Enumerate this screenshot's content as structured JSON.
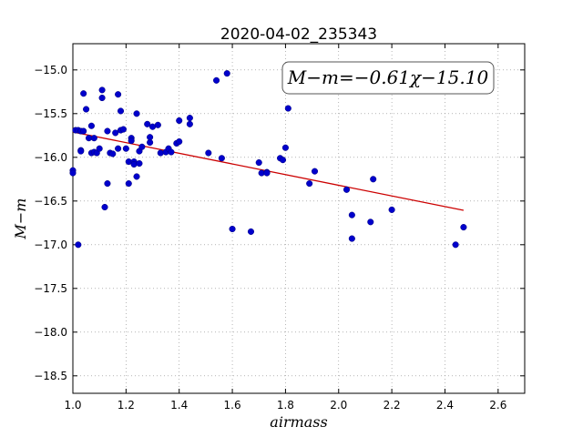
{
  "chart_data": {
    "type": "scatter",
    "title": "2020-04-02_235343",
    "xlabel": "airmass",
    "ylabel": "M−m",
    "xlim": [
      1.0,
      2.7
    ],
    "ylim": [
      -18.7,
      -14.7
    ],
    "y_inverted": false,
    "grid": true,
    "x_ticks": [
      "1.0",
      "1.2",
      "1.4",
      "1.6",
      "1.8",
      "2.0",
      "2.2",
      "2.4",
      "2.6"
    ],
    "y_ticks": [
      "−15.0",
      "−15.5",
      "−16.0",
      "−16.5",
      "−17.0",
      "−17.5",
      "−18.0",
      "−18.5"
    ],
    "annotation": "M−m=−0.61χ−15.10",
    "colors": {
      "points": "#0000cc",
      "fit": "#cc0000",
      "grid": "#888888"
    },
    "fit": {
      "slope": -0.61,
      "intercept": -15.1,
      "x_range": [
        1.0,
        2.47
      ]
    },
    "points": {
      "x": [
        1.0,
        1.0,
        1.01,
        1.02,
        1.02,
        1.03,
        1.03,
        1.03,
        1.04,
        1.04,
        1.05,
        1.06,
        1.07,
        1.07,
        1.08,
        1.08,
        1.09,
        1.1,
        1.11,
        1.11,
        1.12,
        1.13,
        1.13,
        1.14,
        1.15,
        1.16,
        1.17,
        1.17,
        1.18,
        1.18,
        1.19,
        1.2,
        1.21,
        1.21,
        1.22,
        1.22,
        1.23,
        1.23,
        1.24,
        1.24,
        1.25,
        1.25,
        1.26,
        1.28,
        1.29,
        1.29,
        1.3,
        1.32,
        1.33,
        1.35,
        1.36,
        1.37,
        1.39,
        1.4,
        1.4,
        1.44,
        1.44,
        1.51,
        1.54,
        1.56,
        1.58,
        1.6,
        1.67,
        1.7,
        1.71,
        1.73,
        1.73,
        1.78,
        1.79,
        1.8,
        1.81,
        1.89,
        1.91,
        2.03,
        2.05,
        2.05,
        2.12,
        2.13,
        2.2,
        2.44,
        2.47
      ],
      "y": [
        -16.15,
        -16.18,
        -15.69,
        -15.69,
        -17.0,
        -15.92,
        -15.93,
        -15.7,
        -15.27,
        -15.7,
        -15.45,
        -15.78,
        -15.64,
        -15.95,
        -15.78,
        -15.94,
        -15.95,
        -15.9,
        -15.23,
        -15.32,
        -16.57,
        -16.3,
        -15.7,
        -15.95,
        -15.96,
        -15.72,
        -15.28,
        -15.9,
        -15.47,
        -15.69,
        -15.68,
        -15.9,
        -16.3,
        -16.05,
        -15.78,
        -15.81,
        -16.05,
        -16.08,
        -15.5,
        -16.22,
        -16.07,
        -15.93,
        -15.88,
        -15.62,
        -15.77,
        -15.83,
        -15.65,
        -15.63,
        -15.95,
        -15.94,
        -15.9,
        -15.94,
        -15.84,
        -15.58,
        -15.82,
        -15.62,
        -15.55,
        -15.95,
        -15.12,
        -16.01,
        -15.04,
        -16.82,
        -16.85,
        -16.06,
        -16.18,
        -16.17,
        -16.18,
        -16.01,
        -16.03,
        -15.89,
        -15.44,
        -16.3,
        -16.16,
        -16.37,
        -16.66,
        -16.93,
        -16.74,
        -16.25,
        -16.6,
        -17.0,
        -16.8
      ]
    }
  }
}
